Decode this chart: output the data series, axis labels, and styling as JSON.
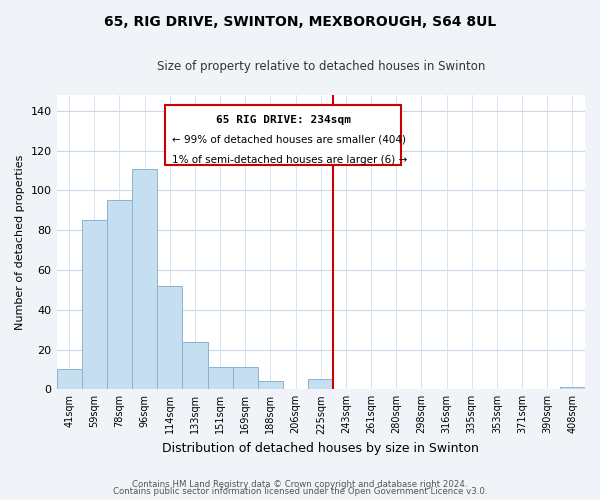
{
  "title": "65, RIG DRIVE, SWINTON, MEXBOROUGH, S64 8UL",
  "subtitle": "Size of property relative to detached houses in Swinton",
  "xlabel": "Distribution of detached houses by size in Swinton",
  "ylabel": "Number of detached properties",
  "bin_labels": [
    "41sqm",
    "59sqm",
    "78sqm",
    "96sqm",
    "114sqm",
    "133sqm",
    "151sqm",
    "169sqm",
    "188sqm",
    "206sqm",
    "225sqm",
    "243sqm",
    "261sqm",
    "280sqm",
    "298sqm",
    "316sqm",
    "335sqm",
    "353sqm",
    "371sqm",
    "390sqm",
    "408sqm"
  ],
  "bar_values": [
    10,
    85,
    95,
    111,
    52,
    24,
    11,
    11,
    4,
    0,
    5,
    0,
    0,
    0,
    0,
    0,
    0,
    0,
    0,
    0,
    1
  ],
  "bar_color": "#c6dff0",
  "bar_edge_color": "#8ab4d4",
  "grid_color": "#c8d8e8",
  "background_color": "#ffffff",
  "fig_background_color": "#f0f4f8",
  "vline_x": 10.5,
  "vline_color": "#cc0000",
  "ann_text_line1": "65 RIG DRIVE: 234sqm",
  "ann_text_line2": "← 99% of detached houses are smaller (404)",
  "ann_text_line3": "1% of semi-detached houses are larger (6) →",
  "annotation_box_color": "#cc0000",
  "footer_line1": "Contains HM Land Registry data © Crown copyright and database right 2024.",
  "footer_line2": "Contains public sector information licensed under the Open Government Licence v3.0.",
  "ylim": [
    0,
    148
  ],
  "yticks": [
    0,
    20,
    40,
    60,
    80,
    100,
    120,
    140
  ]
}
